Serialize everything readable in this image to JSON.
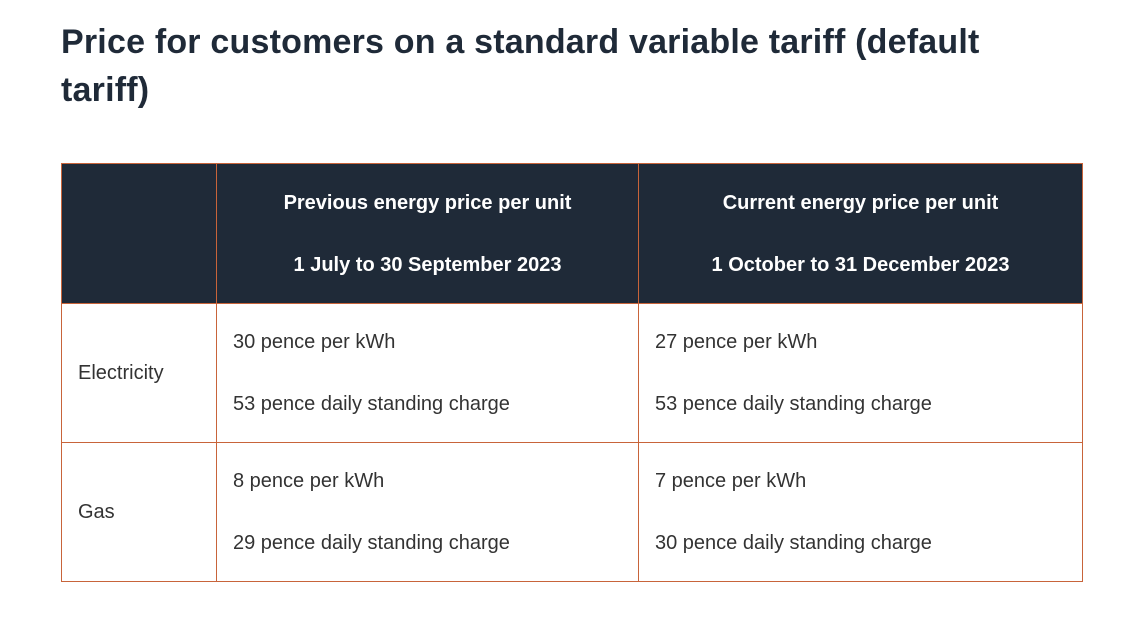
{
  "page": {
    "title": "Price for customers on a standard variable tariff (default tariff)"
  },
  "table": {
    "header": {
      "corner": "",
      "previous": {
        "label": "Previous energy price per unit",
        "period": "1 July to 30 September 2023"
      },
      "current": {
        "label": "Current energy price per unit",
        "period": "1 October to 31 December 2023"
      }
    },
    "rows": [
      {
        "fuel": "Electricity",
        "previous": {
          "unit_rate": "30 pence per kWh",
          "standing_charge": "53 pence daily standing charge"
        },
        "current": {
          "unit_rate": "27 pence per kWh",
          "standing_charge": "53 pence daily standing charge"
        }
      },
      {
        "fuel": "Gas",
        "previous": {
          "unit_rate": "8 pence per kWh",
          "standing_charge": "29 pence daily standing charge"
        },
        "current": {
          "unit_rate": "7 pence per kWh",
          "standing_charge": "30 pence daily standing charge"
        }
      }
    ]
  },
  "colors": {
    "header_bg": "#1f2a38",
    "border": "#c8643a",
    "title_text": "#1f2a38",
    "body_text": "#333333"
  }
}
